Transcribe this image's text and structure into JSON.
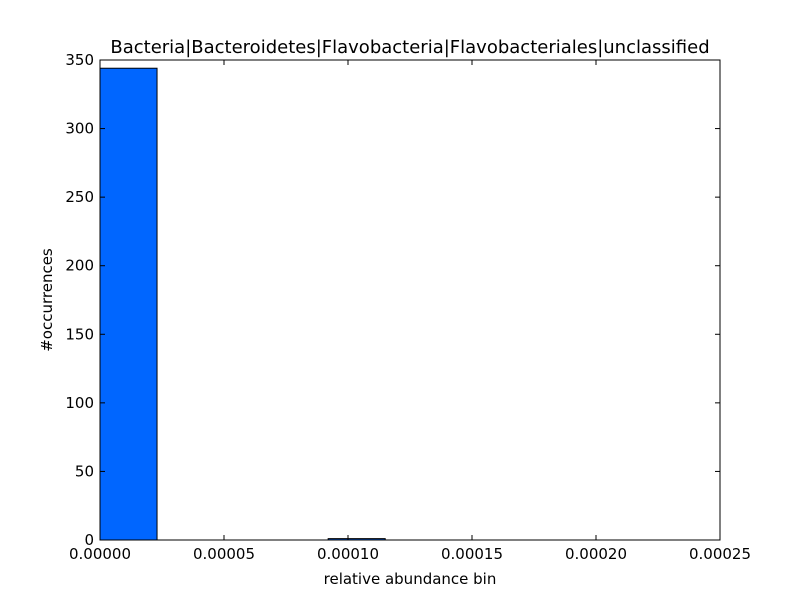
{
  "chart_data": {
    "type": "bar",
    "title": "Bacteria|Bacteroidetes|Flavobacteria|Flavobacteriales|unclassified",
    "xlabel": "relative abundance bin",
    "ylabel": "#occurrences",
    "xlim": [
      0,
      0.00025
    ],
    "ylim": [
      0,
      350
    ],
    "xticks": [
      "0.00000",
      "0.00005",
      "0.00010",
      "0.00015",
      "0.00020",
      "0.00025"
    ],
    "yticks": [
      "0",
      "50",
      "100",
      "150",
      "200",
      "250",
      "300",
      "350"
    ],
    "bins": [
      {
        "x0": 0.0,
        "x1": 2.3e-05,
        "count": 344
      },
      {
        "x0": 2.3e-05,
        "x1": 4.6e-05,
        "count": 0
      },
      {
        "x0": 4.6e-05,
        "x1": 6.9e-05,
        "count": 0
      },
      {
        "x0": 6.9e-05,
        "x1": 9.2e-05,
        "count": 0
      },
      {
        "x0": 9.2e-05,
        "x1": 0.000115,
        "count": 1
      },
      {
        "x0": 0.000115,
        "x1": 0.000138,
        "count": 0
      },
      {
        "x0": 0.000138,
        "x1": 0.000161,
        "count": 0
      },
      {
        "x0": 0.000161,
        "x1": 0.000184,
        "count": 0
      },
      {
        "x0": 0.000184,
        "x1": 0.000207,
        "count": 0
      },
      {
        "x0": 0.000207,
        "x1": 0.00023,
        "count": 0
      }
    ],
    "bar_color": "#0066ff",
    "edge_color": "#000000",
    "grid": false
  }
}
